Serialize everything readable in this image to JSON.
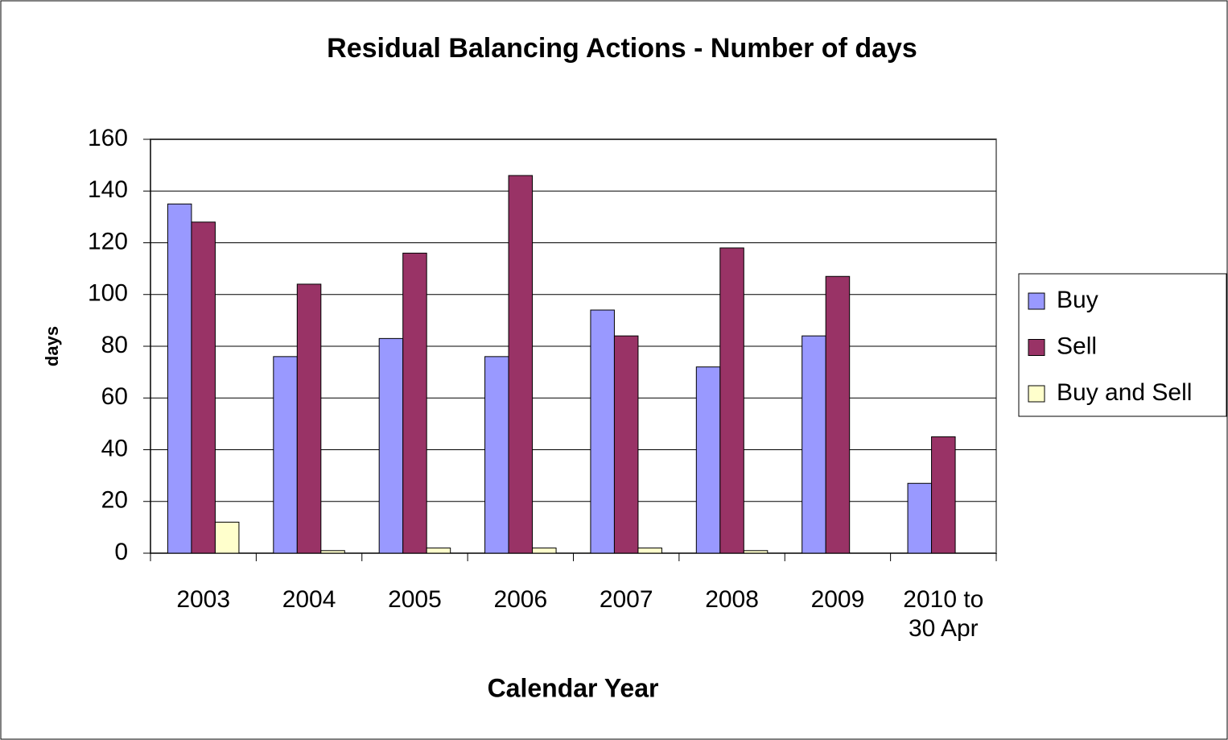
{
  "chart_data": {
    "type": "bar",
    "title": "Residual Balancing Actions - Number of days",
    "x_label": "Calendar Year",
    "y_label": "days",
    "categories": [
      "2003",
      "2004",
      "2005",
      "2006",
      "2007",
      "2008",
      "2009",
      "2010 to 30 Apr"
    ],
    "series": [
      {
        "name": "Buy",
        "color": "#9999ff",
        "values": [
          135,
          76,
          83,
          76,
          94,
          72,
          84,
          27
        ]
      },
      {
        "name": "Sell",
        "color": "#993366",
        "values": [
          128,
          104,
          116,
          146,
          84,
          118,
          107,
          45
        ]
      },
      {
        "name": "Buy and Sell",
        "color": "#ffffcc",
        "values": [
          12,
          1,
          2,
          2,
          2,
          1,
          0,
          0
        ]
      }
    ],
    "ylim": [
      0,
      160
    ],
    "yticks": [
      0,
      20,
      40,
      60,
      80,
      100,
      120,
      140,
      160
    ],
    "grid": true,
    "legend": "right"
  }
}
